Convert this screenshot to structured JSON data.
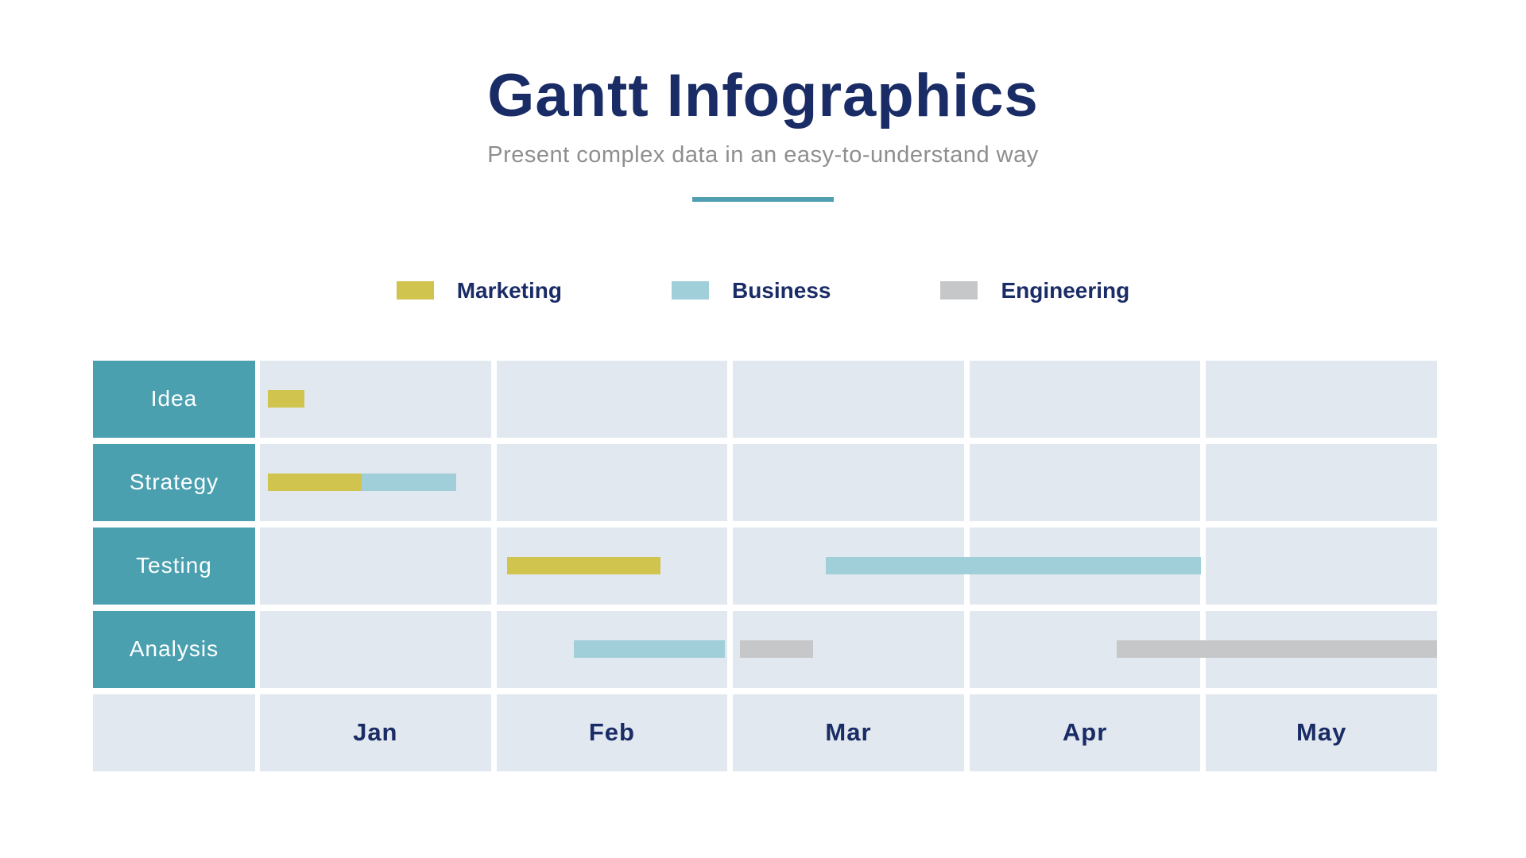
{
  "header": {
    "title": "Gantt Infographics",
    "subtitle": "Present complex data in an easy-to-understand way"
  },
  "colors": {
    "navy": "#1A2C66",
    "teal": "#4BA0B0",
    "underline": "#509FB0",
    "subtitle_gray": "#8E8E8E",
    "cell_bg": "#E2E8EF",
    "marketing": "#D0C44E",
    "business": "#A0CFD9",
    "engineering": "#C6C7C9"
  },
  "legend": [
    {
      "label": "Marketing",
      "color_key": "marketing"
    },
    {
      "label": "Business",
      "color_key": "business"
    },
    {
      "label": "Engineering",
      "color_key": "engineering"
    }
  ],
  "chart_data": {
    "type": "gantt",
    "title": "Gantt Infographics",
    "months": [
      "Jan",
      "Feb",
      "Mar",
      "Apr",
      "May"
    ],
    "month_axis_note": "x axis spans Jan through May; bars measured in fractional months from Jan start",
    "rows": [
      {
        "label": "Idea",
        "bars": [
          {
            "category": "Marketing",
            "start_month": 0.03,
            "end_month": 0.19,
            "left_pct": 0.67,
            "width_pct": 3.1
          }
        ]
      },
      {
        "label": "Strategy",
        "bars": [
          {
            "category": "Marketing",
            "start_month": 0.03,
            "end_month": 0.43,
            "left_pct": 0.67,
            "width_pct": 7.96
          },
          {
            "category": "Business",
            "start_month": 0.43,
            "end_month": 0.82,
            "left_pct": 8.63,
            "width_pct": 8.02
          }
        ]
      },
      {
        "label": "Testing",
        "bars": [
          {
            "category": "Marketing",
            "start_month": 1.02,
            "end_month": 1.7,
            "left_pct": 20.97,
            "width_pct": 13.08
          },
          {
            "category": "Business",
            "start_month": 2.4,
            "end_month": 4.0,
            "left_pct": 48.08,
            "width_pct": 31.89
          }
        ]
      },
      {
        "label": "Analysis",
        "bars": [
          {
            "category": "Business",
            "start_month": 1.31,
            "end_month": 1.98,
            "left_pct": 26.64,
            "width_pct": 12.88
          },
          {
            "category": "Engineering",
            "start_month": 2.03,
            "end_month": 2.35,
            "left_pct": 40.8,
            "width_pct": 6.2
          },
          {
            "category": "Engineering",
            "start_month": 3.65,
            "end_month": 5.0,
            "left_pct": 72.76,
            "width_pct": 27.24
          }
        ]
      }
    ]
  }
}
